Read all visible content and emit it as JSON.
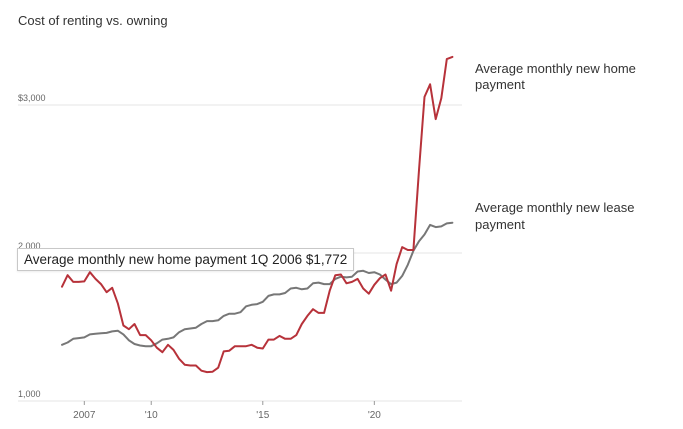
{
  "chart_data": {
    "type": "line",
    "title": "Cost of renting vs. owning",
    "xlabel": "",
    "ylabel": "",
    "xlim": [
      2006.0,
      2023.75
    ],
    "ylim": [
      1000,
      3500
    ],
    "y_ticks": [
      {
        "value": 1000,
        "label": "1,000"
      },
      {
        "value": 2000,
        "label": "2,000"
      },
      {
        "value": 3000,
        "label": "$3,000"
      }
    ],
    "x_ticks": [
      {
        "value": 2007,
        "label": "2007"
      },
      {
        "value": 2010,
        "label": "'10"
      },
      {
        "value": 2015,
        "label": "'15"
      },
      {
        "value": 2020,
        "label": "'20"
      }
    ],
    "grid": true,
    "colors": {
      "home": "#b7323a",
      "lease": "#777777",
      "grid": "#e4e4e4"
    },
    "series": [
      {
        "name": "Average monthly new home payment",
        "label_lines": [
          "Average monthly new home",
          "payment"
        ],
        "color": "#b7323a",
        "points": [
          [
            2006.0,
            1772
          ],
          [
            2006.25,
            1850
          ],
          [
            2006.5,
            1805
          ],
          [
            2006.75,
            1805
          ],
          [
            2007.0,
            1808
          ],
          [
            2007.25,
            1870
          ],
          [
            2007.5,
            1825
          ],
          [
            2007.75,
            1790
          ],
          [
            2008.0,
            1735
          ],
          [
            2008.25,
            1765
          ],
          [
            2008.5,
            1660
          ],
          [
            2008.75,
            1510
          ],
          [
            2009.0,
            1485
          ],
          [
            2009.25,
            1520
          ],
          [
            2009.5,
            1445
          ],
          [
            2009.75,
            1445
          ],
          [
            2010.0,
            1410
          ],
          [
            2010.25,
            1360
          ],
          [
            2010.5,
            1330
          ],
          [
            2010.75,
            1380
          ],
          [
            2011.0,
            1345
          ],
          [
            2011.25,
            1285
          ],
          [
            2011.5,
            1245
          ],
          [
            2011.75,
            1240
          ],
          [
            2012.0,
            1240
          ],
          [
            2012.25,
            1205
          ],
          [
            2012.5,
            1195
          ],
          [
            2012.75,
            1198
          ],
          [
            2013.0,
            1225
          ],
          [
            2013.25,
            1335
          ],
          [
            2013.5,
            1340
          ],
          [
            2013.75,
            1370
          ],
          [
            2014.0,
            1370
          ],
          [
            2014.25,
            1370
          ],
          [
            2014.5,
            1380
          ],
          [
            2014.75,
            1360
          ],
          [
            2015.0,
            1355
          ],
          [
            2015.25,
            1415
          ],
          [
            2015.5,
            1415
          ],
          [
            2015.75,
            1440
          ],
          [
            2016.0,
            1420
          ],
          [
            2016.25,
            1420
          ],
          [
            2016.5,
            1445
          ],
          [
            2016.75,
            1520
          ],
          [
            2017.0,
            1575
          ],
          [
            2017.25,
            1620
          ],
          [
            2017.5,
            1595
          ],
          [
            2017.75,
            1595
          ],
          [
            2018.0,
            1745
          ],
          [
            2018.25,
            1850
          ],
          [
            2018.5,
            1855
          ],
          [
            2018.75,
            1795
          ],
          [
            2019.0,
            1805
          ],
          [
            2019.25,
            1825
          ],
          [
            2019.5,
            1760
          ],
          [
            2019.75,
            1725
          ],
          [
            2020.0,
            1785
          ],
          [
            2020.25,
            1830
          ],
          [
            2020.5,
            1855
          ],
          [
            2020.75,
            1745
          ],
          [
            2021.0,
            1925
          ],
          [
            2021.25,
            2040
          ],
          [
            2021.5,
            2020
          ],
          [
            2021.75,
            2020
          ],
          [
            2022.0,
            2560
          ],
          [
            2022.25,
            3055
          ],
          [
            2022.5,
            3140
          ],
          [
            2022.75,
            2905
          ],
          [
            2023.0,
            3045
          ],
          [
            2023.25,
            3310
          ],
          [
            2023.5,
            3325
          ]
        ]
      },
      {
        "name": "Average monthly new lease payment",
        "label_lines": [
          "Average monthly new lease",
          "payment"
        ],
        "color": "#777777",
        "points": [
          [
            2006.0,
            1380
          ],
          [
            2006.25,
            1395
          ],
          [
            2006.5,
            1420
          ],
          [
            2006.75,
            1425
          ],
          [
            2007.0,
            1430
          ],
          [
            2007.25,
            1450
          ],
          [
            2007.5,
            1455
          ],
          [
            2007.75,
            1458
          ],
          [
            2008.0,
            1460
          ],
          [
            2008.25,
            1470
          ],
          [
            2008.5,
            1475
          ],
          [
            2008.75,
            1450
          ],
          [
            2009.0,
            1410
          ],
          [
            2009.25,
            1385
          ],
          [
            2009.5,
            1375
          ],
          [
            2009.75,
            1370
          ],
          [
            2010.0,
            1370
          ],
          [
            2010.25,
            1390
          ],
          [
            2010.5,
            1415
          ],
          [
            2010.75,
            1420
          ],
          [
            2011.0,
            1430
          ],
          [
            2011.25,
            1465
          ],
          [
            2011.5,
            1485
          ],
          [
            2011.75,
            1490
          ],
          [
            2012.0,
            1495
          ],
          [
            2012.25,
            1520
          ],
          [
            2012.5,
            1540
          ],
          [
            2012.75,
            1540
          ],
          [
            2013.0,
            1545
          ],
          [
            2013.25,
            1575
          ],
          [
            2013.5,
            1590
          ],
          [
            2013.75,
            1590
          ],
          [
            2014.0,
            1600
          ],
          [
            2014.25,
            1640
          ],
          [
            2014.5,
            1650
          ],
          [
            2014.75,
            1655
          ],
          [
            2015.0,
            1670
          ],
          [
            2015.25,
            1710
          ],
          [
            2015.5,
            1720
          ],
          [
            2015.75,
            1720
          ],
          [
            2016.0,
            1730
          ],
          [
            2016.25,
            1760
          ],
          [
            2016.5,
            1765
          ],
          [
            2016.75,
            1755
          ],
          [
            2017.0,
            1760
          ],
          [
            2017.25,
            1795
          ],
          [
            2017.5,
            1800
          ],
          [
            2017.75,
            1790
          ],
          [
            2018.0,
            1790
          ],
          [
            2018.25,
            1825
          ],
          [
            2018.5,
            1840
          ],
          [
            2018.75,
            1835
          ],
          [
            2019.0,
            1840
          ],
          [
            2019.25,
            1875
          ],
          [
            2019.5,
            1880
          ],
          [
            2019.75,
            1865
          ],
          [
            2020.0,
            1870
          ],
          [
            2020.25,
            1855
          ],
          [
            2020.5,
            1820
          ],
          [
            2020.75,
            1790
          ],
          [
            2021.0,
            1800
          ],
          [
            2021.25,
            1845
          ],
          [
            2021.5,
            1920
          ],
          [
            2021.75,
            2015
          ],
          [
            2022.0,
            2080
          ],
          [
            2022.25,
            2125
          ],
          [
            2022.5,
            2190
          ],
          [
            2022.75,
            2175
          ],
          [
            2023.0,
            2180
          ],
          [
            2023.25,
            2200
          ],
          [
            2023.5,
            2205
          ]
        ]
      }
    ],
    "tooltip": {
      "text": "Average monthly new home payment 1Q 2006 $1,772"
    }
  }
}
